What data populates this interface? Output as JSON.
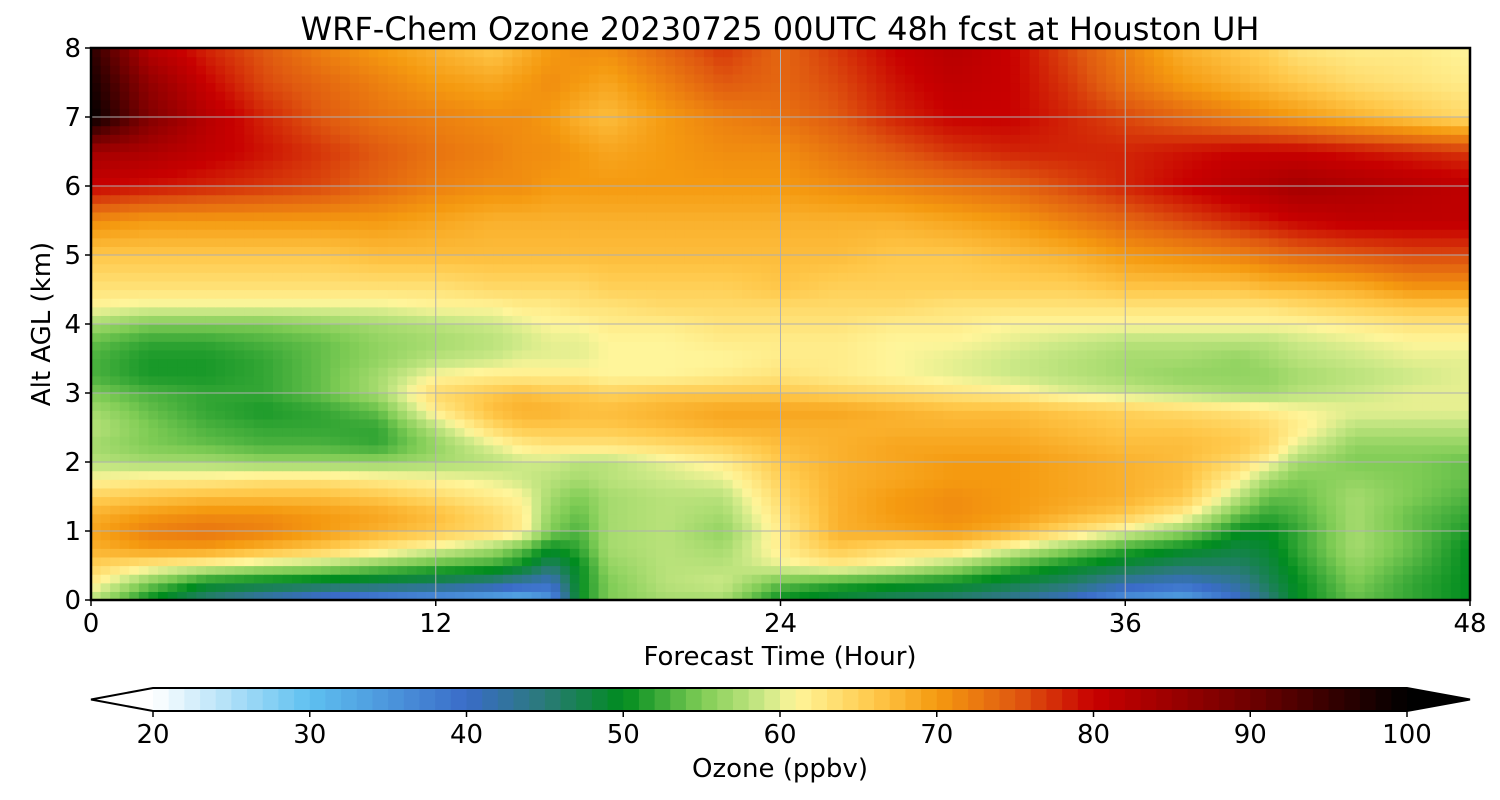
{
  "chart_data": {
    "type": "heatmap",
    "title": "WRF-Chem Ozone  20230725 00UTC 48h fcst at Houston UH",
    "xlabel": "Forecast Time (Hour)",
    "ylabel": "Alt AGL (km)",
    "xlim": [
      0,
      48
    ],
    "ylim": [
      0,
      8
    ],
    "xticks": [
      "0",
      "12",
      "24",
      "36",
      "48"
    ],
    "yticks": [
      "0",
      "1",
      "2",
      "3",
      "4",
      "5",
      "6",
      "7",
      "8"
    ],
    "grid": true,
    "colorbar": {
      "label": "Ozone  (ppbv)",
      "min": 20,
      "max": 100,
      "ticks": [
        "20",
        "30",
        "40",
        "50",
        "60",
        "70",
        "80",
        "90",
        "100"
      ],
      "extend": "both",
      "colors": [
        [
          20,
          "#ffffff"
        ],
        [
          30,
          "#5ec0f0"
        ],
        [
          40,
          "#3a6cc8"
        ],
        [
          45,
          "#2a7a78"
        ],
        [
          50,
          "#008c1e"
        ],
        [
          55,
          "#7fcc55"
        ],
        [
          59,
          "#cce987"
        ],
        [
          61,
          "#fff59a"
        ],
        [
          66,
          "#ffc84a"
        ],
        [
          70,
          "#f59a10"
        ],
        [
          75,
          "#e05a10"
        ],
        [
          80,
          "#c80000"
        ],
        [
          90,
          "#6e0000"
        ],
        [
          100,
          "#000000"
        ]
      ]
    },
    "times": [
      0,
      2,
      4,
      6,
      8,
      10,
      12,
      14,
      15,
      16,
      17,
      18,
      20,
      22,
      24,
      26,
      28,
      30,
      32,
      34,
      36,
      38,
      40,
      41,
      42,
      44,
      46,
      48
    ],
    "altitudes": [
      0,
      0.25,
      0.5,
      0.75,
      1,
      1.25,
      1.5,
      1.75,
      2,
      2.25,
      2.5,
      2.75,
      3,
      3.25,
      3.5,
      3.75,
      4,
      4.25,
      4.5,
      5,
      5.5,
      6,
      6.5,
      7,
      7.5,
      8
    ],
    "values": [
      [
        58,
        50,
        45,
        41,
        38,
        36,
        34,
        32,
        31,
        35,
        50,
        55,
        57,
        57,
        50,
        48,
        46,
        45,
        43,
        40,
        35,
        33,
        40,
        45,
        50,
        54,
        52,
        50
      ],
      [
        62,
        55,
        50,
        49,
        48,
        47,
        46,
        44,
        42,
        40,
        50,
        55,
        58,
        59,
        54,
        52,
        51,
        50,
        48,
        46,
        42,
        40,
        43,
        47,
        50,
        55,
        52,
        50
      ],
      [
        65,
        62,
        60,
        58,
        57,
        55,
        53,
        52,
        50,
        46,
        50,
        56,
        58,
        58,
        60,
        62,
        60,
        57,
        53,
        50,
        48,
        46,
        46,
        48,
        51,
        56,
        53,
        50
      ],
      [
        68,
        70,
        70,
        68,
        66,
        63,
        60,
        57,
        54,
        50,
        52,
        57,
        58,
        57,
        62,
        66,
        64,
        64,
        60,
        56,
        52,
        50,
        48,
        49,
        52,
        57,
        54,
        50
      ],
      [
        69,
        72,
        73,
        72,
        70,
        68,
        66,
        64,
        62,
        55,
        53,
        57,
        58,
        56,
        62,
        68,
        69,
        70,
        68,
        64,
        60,
        56,
        50,
        50,
        52,
        57,
        54,
        51
      ],
      [
        68,
        70,
        71,
        71,
        70,
        69,
        67,
        64,
        62,
        56,
        54,
        57,
        58,
        57,
        63,
        68,
        70,
        71,
        70,
        68,
        66,
        62,
        54,
        52,
        53,
        57,
        54,
        52
      ],
      [
        65,
        66,
        67,
        67,
        67,
        66,
        64,
        62,
        61,
        57,
        55,
        57,
        58,
        58,
        64,
        68,
        70,
        71,
        70,
        69,
        68,
        66,
        58,
        54,
        54,
        57,
        55,
        53
      ],
      [
        61,
        62,
        62,
        63,
        63,
        62,
        61,
        60,
        59,
        58,
        57,
        58,
        59,
        60,
        65,
        68,
        69,
        70,
        70,
        69,
        68,
        67,
        61,
        57,
        55,
        56,
        55,
        54
      ],
      [
        58,
        57,
        57,
        56,
        56,
        56,
        57,
        58,
        59,
        59,
        58,
        58,
        60,
        62,
        66,
        68,
        69,
        70,
        70,
        69,
        68,
        67,
        64,
        61,
        57,
        55,
        55,
        54
      ],
      [
        57,
        55,
        54,
        53,
        53,
        52,
        56,
        60,
        62,
        63,
        63,
        63,
        64,
        65,
        67,
        68,
        69,
        69,
        69,
        68,
        67,
        67,
        66,
        64,
        60,
        56,
        56,
        56
      ],
      [
        58,
        55,
        53,
        52,
        52,
        52,
        58,
        64,
        66,
        66,
        66,
        66,
        67,
        68,
        68,
        68,
        68,
        68,
        68,
        67,
        66,
        66,
        65,
        64,
        62,
        58,
        58,
        58
      ],
      [
        57,
        54,
        52,
        51,
        52,
        54,
        62,
        67,
        68,
        68,
        67,
        67,
        68,
        69,
        69,
        69,
        68,
        67,
        67,
        66,
        65,
        64,
        63,
        62,
        61,
        60,
        60,
        60
      ],
      [
        55,
        53,
        52,
        52,
        54,
        57,
        64,
        66,
        67,
        66,
        66,
        65,
        66,
        66,
        66,
        65,
        64,
        63,
        62,
        60,
        59,
        58,
        57,
        57,
        58,
        59,
        60,
        60
      ],
      [
        53,
        51,
        51,
        52,
        54,
        57,
        61,
        62,
        62,
        62,
        62,
        61,
        61,
        62,
        63,
        62,
        61,
        60,
        59,
        58,
        57,
        56,
        56,
        56,
        57,
        58,
        59,
        60
      ],
      [
        53,
        51,
        51,
        52,
        54,
        56,
        58,
        59,
        60,
        60,
        60,
        61,
        61,
        61,
        62,
        62,
        61,
        60,
        59,
        58,
        57,
        57,
        56,
        57,
        58,
        59,
        60,
        60
      ],
      [
        54,
        52,
        52,
        53,
        54,
        56,
        57,
        58,
        59,
        60,
        60,
        61,
        61,
        62,
        62,
        62,
        61,
        61,
        60,
        59,
        58,
        58,
        58,
        58,
        59,
        60,
        61,
        61
      ],
      [
        57,
        55,
        55,
        55,
        56,
        57,
        58,
        59,
        60,
        61,
        61,
        62,
        62,
        63,
        63,
        63,
        62,
        62,
        61,
        61,
        61,
        61,
        61,
        61,
        61,
        62,
        63,
        63
      ],
      [
        61,
        60,
        60,
        60,
        60,
        60,
        61,
        61,
        62,
        62,
        63,
        63,
        64,
        64,
        64,
        64,
        64,
        63,
        63,
        63,
        63,
        63,
        63,
        63,
        64,
        65,
        66,
        66
      ],
      [
        63,
        63,
        63,
        63,
        63,
        63,
        63,
        64,
        64,
        64,
        64,
        65,
        65,
        65,
        66,
        65,
        65,
        65,
        65,
        65,
        66,
        66,
        66,
        67,
        67,
        68,
        70,
        70
      ],
      [
        66,
        66,
        66,
        66,
        66,
        67,
        67,
        67,
        67,
        67,
        67,
        67,
        67,
        67,
        67,
        67,
        66,
        66,
        67,
        68,
        70,
        71,
        72,
        73,
        74,
        75,
        76,
        76
      ],
      [
        71,
        70,
        70,
        70,
        70,
        70,
        69,
        68,
        68,
        68,
        68,
        68,
        68,
        68,
        68,
        68,
        68,
        69,
        70,
        72,
        74,
        76,
        78,
        79,
        80,
        81,
        81,
        81
      ],
      [
        80,
        79,
        78,
        77,
        76,
        74,
        72,
        71,
        71,
        70,
        70,
        70,
        70,
        70,
        70,
        71,
        72,
        73,
        74,
        76,
        78,
        80,
        82,
        83,
        84,
        83,
        82,
        81
      ],
      [
        84,
        83,
        81,
        79,
        77,
        75,
        73,
        72,
        71,
        71,
        70,
        69,
        70,
        71,
        71,
        73,
        75,
        77,
        78,
        78,
        78,
        79,
        80,
        80,
        80,
        79,
        78,
        77
      ],
      [
        100,
        88,
        82,
        78,
        75,
        73,
        72,
        71,
        71,
        70,
        68,
        67,
        70,
        72,
        73,
        75,
        78,
        80,
        80,
        78,
        76,
        74,
        72,
        71,
        70,
        68,
        66,
        64
      ],
      [
        98,
        86,
        80,
        76,
        74,
        72,
        70,
        69,
        70,
        71,
        70,
        69,
        72,
        75,
        74,
        76,
        79,
        81,
        80,
        77,
        73,
        70,
        68,
        67,
        66,
        64,
        63,
        62
      ],
      [
        96,
        82,
        78,
        75,
        72,
        70,
        68,
        66,
        68,
        70,
        71,
        71,
        74,
        77,
        74,
        77,
        80,
        82,
        80,
        76,
        72,
        68,
        66,
        65,
        63,
        62,
        62,
        61
      ]
    ]
  }
}
